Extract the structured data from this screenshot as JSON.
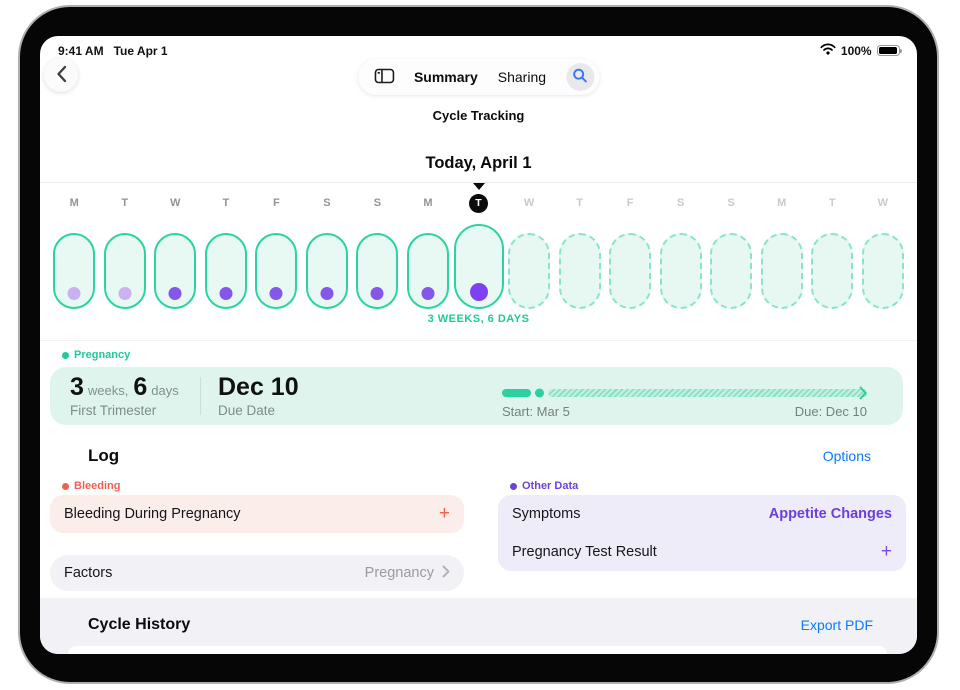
{
  "status_bar": {
    "time": "9:41 AM",
    "date": "Tue Apr 1",
    "battery_percent": "100%"
  },
  "nav": {
    "summary_label": "Summary",
    "sharing_label": "Sharing"
  },
  "header": {
    "app_title": "Cycle Tracking",
    "date_heading": "Today, April 1"
  },
  "calendar": {
    "gestation_caption": "3 WEEKS, 6 DAYS",
    "days": [
      {
        "letter": "M",
        "phase": "logged",
        "dot": "light"
      },
      {
        "letter": "T",
        "phase": "logged",
        "dot": "light"
      },
      {
        "letter": "W",
        "phase": "logged",
        "dot": "dark"
      },
      {
        "letter": "T",
        "phase": "logged",
        "dot": "dark"
      },
      {
        "letter": "F",
        "phase": "logged",
        "dot": "dark"
      },
      {
        "letter": "S",
        "phase": "logged",
        "dot": "dark"
      },
      {
        "letter": "S",
        "phase": "logged",
        "dot": "dark"
      },
      {
        "letter": "M",
        "phase": "logged",
        "dot": "dark"
      },
      {
        "letter": "T",
        "phase": "today",
        "dot": "big"
      },
      {
        "letter": "W",
        "phase": "future",
        "dot": "none"
      },
      {
        "letter": "T",
        "phase": "future",
        "dot": "none"
      },
      {
        "letter": "F",
        "phase": "future",
        "dot": "none"
      },
      {
        "letter": "S",
        "phase": "future",
        "dot": "none"
      },
      {
        "letter": "S",
        "phase": "future",
        "dot": "none"
      },
      {
        "letter": "M",
        "phase": "future",
        "dot": "none"
      },
      {
        "letter": "T",
        "phase": "future",
        "dot": "none"
      },
      {
        "letter": "W",
        "phase": "future",
        "dot": "none"
      }
    ]
  },
  "pregnancy": {
    "legend_label": "Pregnancy",
    "weeks_value": "3",
    "weeks_unit": "weeks,",
    "days_value": "6",
    "days_unit": "days",
    "stage": "First Trimester",
    "due_value": "Dec 10",
    "due_label": "Due Date",
    "start_caption": "Start: Mar 5",
    "due_caption": "Due: Dec 10",
    "progress_percent": 8
  },
  "log": {
    "title": "Log",
    "options_label": "Options",
    "bleeding": {
      "legend": "Bleeding",
      "item": "Bleeding During Pregnancy",
      "add_label": "+"
    },
    "factors": {
      "label": "Factors",
      "value": "Pregnancy"
    },
    "other_data": {
      "legend": "Other Data",
      "rows": [
        {
          "label": "Symptoms",
          "value": "Appetite Changes"
        },
        {
          "label": "Pregnancy Test Result",
          "value": "+"
        }
      ]
    }
  },
  "history": {
    "title": "Cycle History",
    "export_label": "Export PDF"
  },
  "icons": {
    "back": "chevron-left",
    "sidebar": "sidebar-toggle",
    "search": "magnifier",
    "wifi": "wifi",
    "battery": "battery-full",
    "today_pointer": "triangle-down",
    "row_disclosure": "chevron-right"
  },
  "colors": {
    "teal": "#1fcb97",
    "mint_card": "#def4ec",
    "mint_fill": "#e8f9f3",
    "purple_dark": "#8456e9",
    "purple_light": "#c9b1f2",
    "purple_text": "#6b3fdf",
    "coral": "#f4604e",
    "pink_card": "#fbedea",
    "lavender_card": "#efecfa",
    "link_blue": "#0a7aff"
  }
}
